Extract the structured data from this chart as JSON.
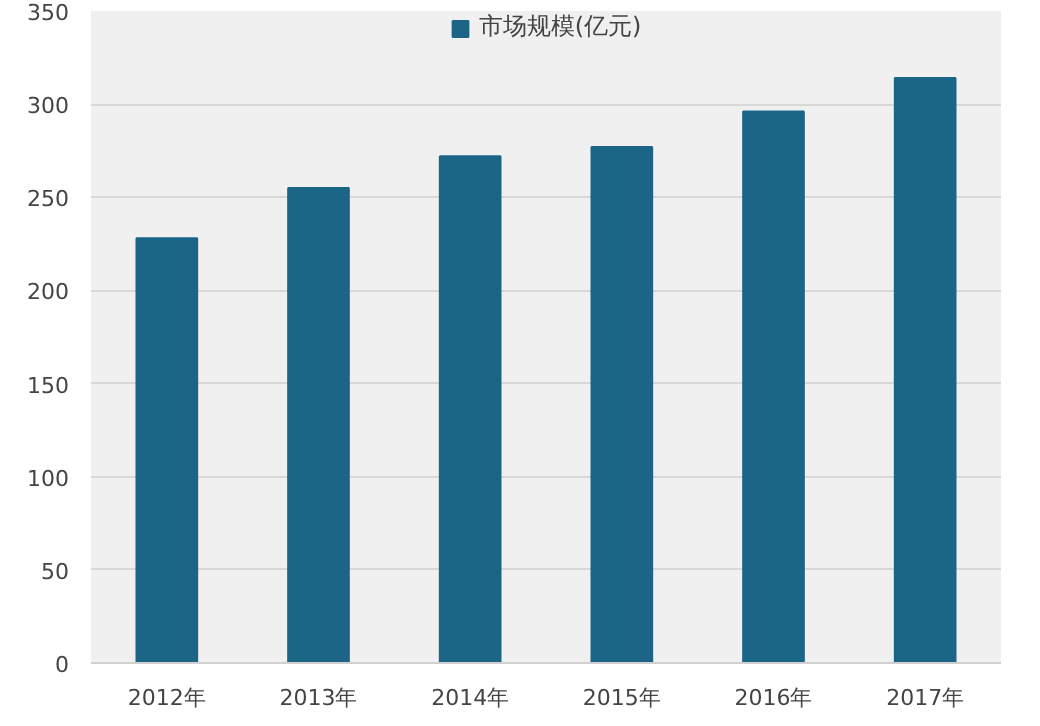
{
  "chart_data": {
    "type": "bar",
    "categories": [
      "2012年",
      "2013年",
      "2014年",
      "2015年",
      "2016年",
      "2017年"
    ],
    "series": [
      {
        "name": "市场规模(亿元)",
        "color": "#1b6587",
        "values": [
          228,
          255,
          272,
          277,
          296,
          314
        ]
      }
    ],
    "ylim": [
      0,
      350
    ],
    "yticks": [
      0,
      50,
      100,
      150,
      200,
      250,
      300,
      350
    ],
    "grid": "y",
    "legend": "top"
  }
}
